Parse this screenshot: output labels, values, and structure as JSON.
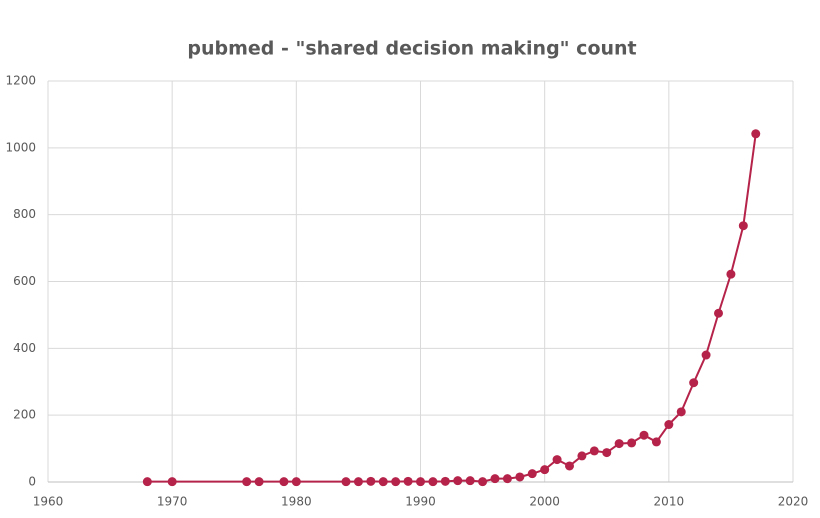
{
  "chart_data": {
    "type": "line",
    "title": "pubmed - \"shared decision making\" count",
    "x": [
      1968,
      1970,
      1976,
      1977,
      1979,
      1980,
      1984,
      1985,
      1986,
      1987,
      1988,
      1989,
      1990,
      1991,
      1992,
      1993,
      1994,
      1995,
      1996,
      1997,
      1998,
      1999,
      2000,
      2001,
      2002,
      2003,
      2004,
      2005,
      2006,
      2007,
      2008,
      2009,
      2010,
      2011,
      2012,
      2013,
      2014,
      2015,
      2016,
      2017
    ],
    "series": [
      {
        "name": "count",
        "color": "#b5234a",
        "values": [
          1,
          1,
          1,
          1,
          1,
          1,
          1,
          1,
          2,
          1,
          1,
          2,
          1,
          1,
          2,
          4,
          4,
          1,
          10,
          10,
          15,
          25,
          37,
          67,
          48,
          78,
          93,
          88,
          115,
          117,
          140,
          120,
          172,
          210,
          297,
          380,
          505,
          622,
          767,
          1042
        ]
      }
    ],
    "xlim": [
      1960,
      2020
    ],
    "xticks": [
      1960,
      1970,
      1980,
      1990,
      2000,
      2010,
      2020
    ],
    "ylim": [
      0,
      1200
    ],
    "yticks": [
      0,
      200,
      400,
      600,
      800,
      1000,
      1200
    ],
    "grid": true
  }
}
